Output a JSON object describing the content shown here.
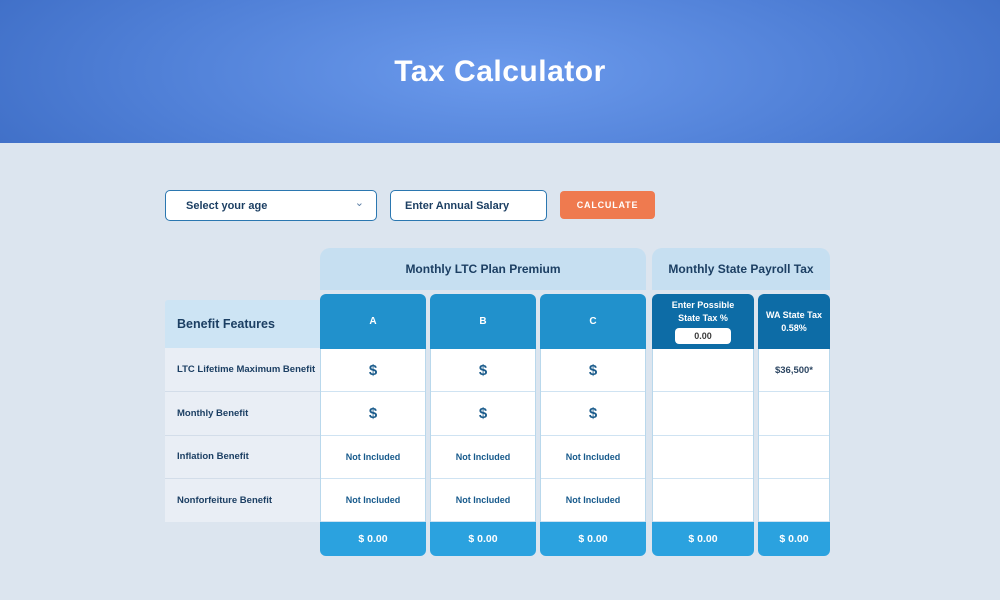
{
  "header": {
    "title": "Tax Calculator"
  },
  "controls": {
    "age_select": {
      "label": "Select your age",
      "chevron_icon": "chevron-down"
    },
    "salary_input": {
      "placeholder": "Enter Annual Salary"
    },
    "calculate_button": {
      "label": "CALCULATE"
    }
  },
  "table": {
    "group_headers": [
      {
        "label": "Monthly LTC Plan Premium"
      },
      {
        "label": "Monthly State Payroll Tax"
      }
    ],
    "features_header": "Benefit Features",
    "rows": [
      "LTC Lifetime Maximum Benefit",
      "Monthly Benefit",
      "Inflation Benefit",
      "Nonforfeiture Benefit"
    ],
    "columns": [
      {
        "id": "A",
        "header": "A",
        "cells": [
          "$",
          "$",
          "Not Included",
          "Not Included"
        ],
        "total": "$ 0.00"
      },
      {
        "id": "B",
        "header": "B",
        "cells": [
          "$",
          "$",
          "Not Included",
          "Not Included"
        ],
        "total": "$ 0.00"
      },
      {
        "id": "C",
        "header": "C",
        "cells": [
          "$",
          "$",
          "Not Included",
          "Not Included"
        ],
        "total": "$ 0.00"
      },
      {
        "id": "state_tax_input",
        "header_line1": "Enter Possible",
        "header_line2": "State Tax %",
        "input_value": "0.00",
        "cells": [
          "",
          "",
          "",
          ""
        ],
        "total": "$ 0.00"
      },
      {
        "id": "wa_state_tax",
        "header_line1": "WA State Tax",
        "header_line2": "0.58%",
        "cells": [
          "$36,500*",
          "",
          "",
          ""
        ],
        "total": "$ 0.00"
      }
    ]
  },
  "colors": {
    "banner_center": "#6b9aec",
    "banner_edge": "#1c4fa2",
    "page_background": "#dce5ef",
    "group_header_bg": "#c6dff1",
    "column_header_blue": "#2191cc",
    "state_header_blue": "#0d6ca6",
    "footer_blue": "#2ba2df",
    "button_orange": "#ef7a4f",
    "navy_text": "#1c3f63",
    "cell_text_blue": "#175a8c"
  }
}
